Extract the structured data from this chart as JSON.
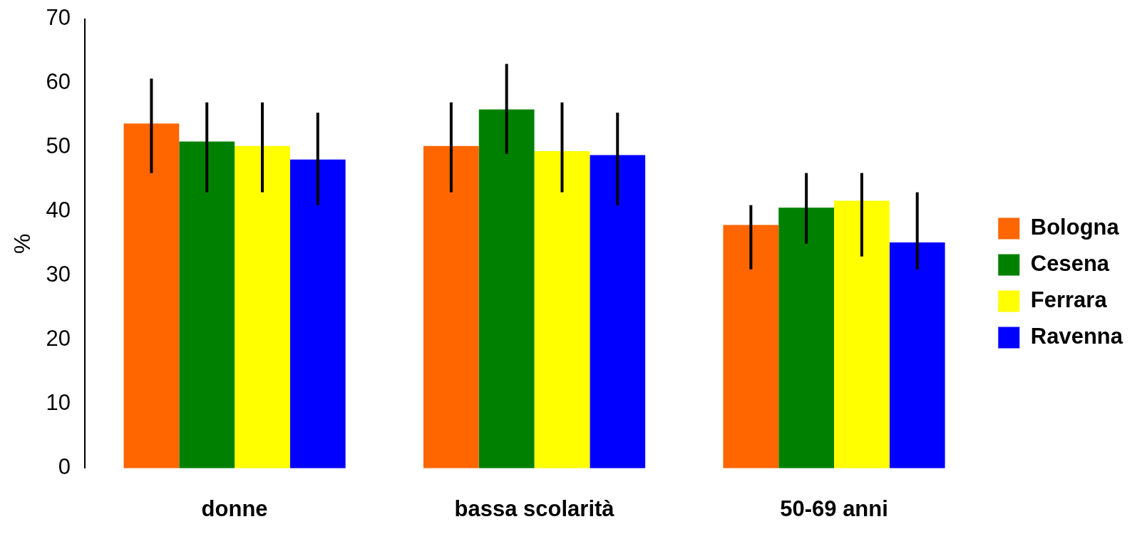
{
  "chart_data": {
    "type": "bar",
    "ylabel": "%",
    "categories": [
      "donne",
      "bassa scolarità",
      "50-69 anni"
    ],
    "series": [
      {
        "name": "Bologna",
        "color": "#ff6600",
        "values": [
          53.7,
          50.2,
          37.9
        ],
        "errors": [
          [
            46,
            60.7
          ],
          [
            43,
            57
          ],
          [
            31,
            41
          ]
        ]
      },
      {
        "name": "Cesena",
        "color": "#008000",
        "values": [
          50.9,
          55.9,
          40.6
        ],
        "errors": [
          [
            43,
            57
          ],
          [
            49,
            63
          ],
          [
            35,
            46
          ]
        ]
      },
      {
        "name": "Ferrara",
        "color": "#ffff00",
        "values": [
          50.2,
          49.4,
          41.7
        ],
        "errors": [
          [
            43,
            57
          ],
          [
            43,
            57
          ],
          [
            33,
            46
          ]
        ]
      },
      {
        "name": "Ravenna",
        "color": "#0000ff",
        "values": [
          48.1,
          48.8,
          35.2
        ],
        "errors": [
          [
            41,
            55.4
          ],
          [
            41,
            55.4
          ],
          [
            31,
            43
          ]
        ]
      }
    ],
    "ylim": [
      0,
      70
    ],
    "yticks": [
      0,
      10,
      20,
      30,
      40,
      50,
      60,
      70
    ],
    "grid": false,
    "legend": "right"
  }
}
